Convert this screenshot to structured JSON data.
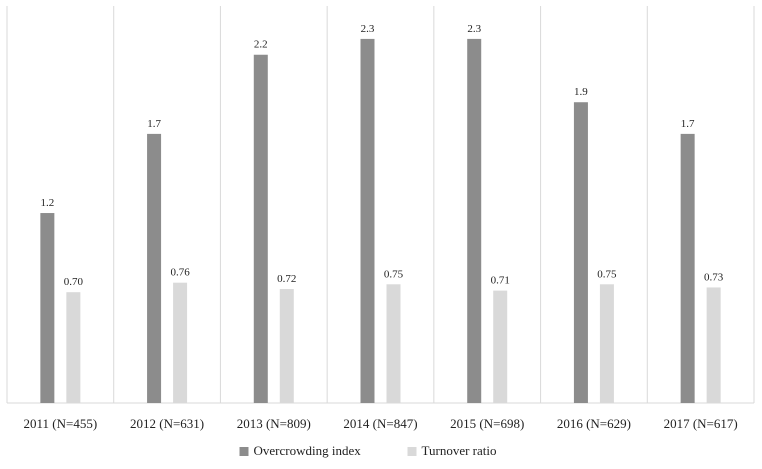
{
  "chart_data": {
    "type": "bar",
    "categories": [
      "2011 (N=455)",
      "2012 (N=631)",
      "2013 (N=809)",
      "2014 (N=847)",
      "2015 (N=698)",
      "2016 (N=629)",
      "2017 (N=617)"
    ],
    "series": [
      {
        "name": "Overcrowding index",
        "values": [
          1.2,
          1.7,
          2.2,
          2.3,
          2.3,
          1.9,
          1.7
        ],
        "labels": [
          "1.2",
          "1.7",
          "2.2",
          "2.3",
          "2.3",
          "1.9",
          "1.7"
        ],
        "color": "#8c8c8c"
      },
      {
        "name": "Turnover ratio",
        "values": [
          0.7,
          0.76,
          0.72,
          0.75,
          0.71,
          0.75,
          0.73
        ],
        "labels": [
          "0.70",
          "0.76",
          "0.72",
          "0.75",
          "0.71",
          "0.75",
          "0.73"
        ],
        "color": "#d9d9d9"
      }
    ],
    "title": "",
    "xlabel": "",
    "ylabel": "",
    "ylim": [
      0,
      2.5
    ],
    "grid": "vertical category separators",
    "legend": "bottom-center"
  }
}
